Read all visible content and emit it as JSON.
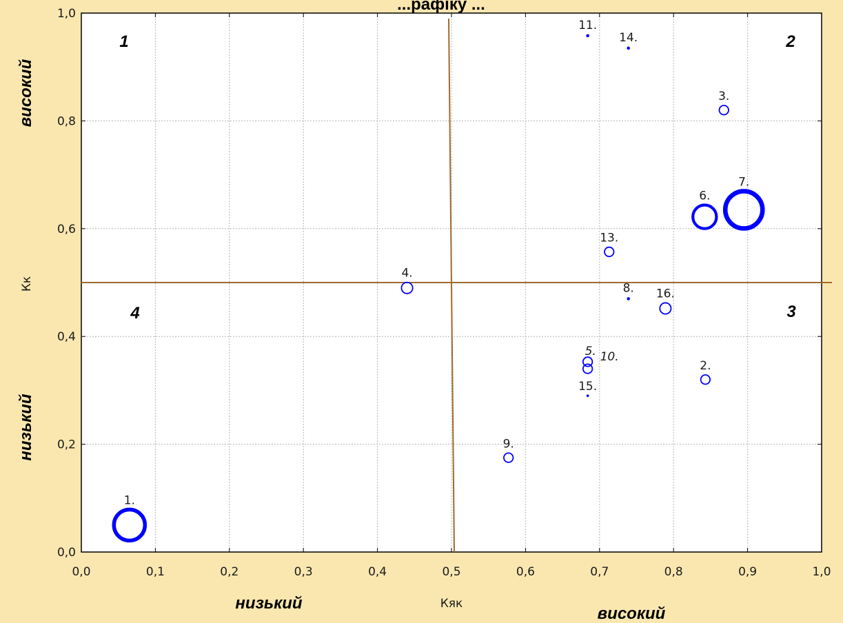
{
  "chart_data": {
    "type": "scatter",
    "title": "...рафіку ...",
    "xlabel": "Кяк",
    "ylabel": "Кк",
    "xlim": [
      0,
      1
    ],
    "ylim": [
      0,
      1
    ],
    "grid": true,
    "xticks": [
      "0,0",
      "0,1",
      "0,2",
      "0,3",
      "0,4",
      "0,5",
      "0,6",
      "0,7",
      "0,8",
      "0,9",
      "1,0"
    ],
    "yticks": [
      "0,0",
      "0,2",
      "0,4",
      "0,6",
      "0,8",
      "1,0"
    ],
    "divider": {
      "x": 0.5,
      "y": 0.5
    },
    "quadrant_labels": [
      {
        "text": "1",
        "pos": "top-left"
      },
      {
        "text": "2",
        "pos": "top-right"
      },
      {
        "text": "3",
        "pos": "bottom-right"
      },
      {
        "text": "4",
        "pos": "bottom-left"
      }
    ],
    "annotations": {
      "y_high": "високий",
      "y_low": "низький",
      "x_low": "низький",
      "x_high": "високий"
    },
    "points": [
      {
        "label": "1.",
        "x": 0.065,
        "y": 0.05,
        "size": 5
      },
      {
        "label": "2.",
        "x": 0.843,
        "y": 0.32,
        "size": 1.5
      },
      {
        "label": "3.",
        "x": 0.868,
        "y": 0.82,
        "size": 1.5
      },
      {
        "label": "4.",
        "x": 0.44,
        "y": 0.49,
        "size": 1.8
      },
      {
        "label": "5.",
        "x": 0.684,
        "y": 0.353,
        "size": 1.5,
        "italic": true
      },
      {
        "label": "6.",
        "x": 0.842,
        "y": 0.622,
        "size": 3.8
      },
      {
        "label": "7.",
        "x": 0.895,
        "y": 0.635,
        "size": 6
      },
      {
        "label": "8.",
        "x": 0.739,
        "y": 0.47,
        "size": 0.4
      },
      {
        "label": "9.",
        "x": 0.577,
        "y": 0.175,
        "size": 1.5
      },
      {
        "label": "10.",
        "x": 0.684,
        "y": 0.34,
        "size": 1.5,
        "italic": true
      },
      {
        "label": "11.",
        "x": 0.684,
        "y": 0.958,
        "size": 0.4
      },
      {
        "label": "13.",
        "x": 0.713,
        "y": 0.557,
        "size": 1.5
      },
      {
        "label": "14.",
        "x": 0.739,
        "y": 0.935,
        "size": 0.4
      },
      {
        "label": "15.",
        "x": 0.684,
        "y": 0.29,
        "size": 0.3
      },
      {
        "label": "16.",
        "x": 0.789,
        "y": 0.452,
        "size": 1.8
      }
    ]
  },
  "colors": {
    "background": "#fae7b0",
    "plot_bg": "#ffffff",
    "marker": "#0000ff",
    "divider": "#a0692a",
    "grid": "#b4b4b4"
  }
}
